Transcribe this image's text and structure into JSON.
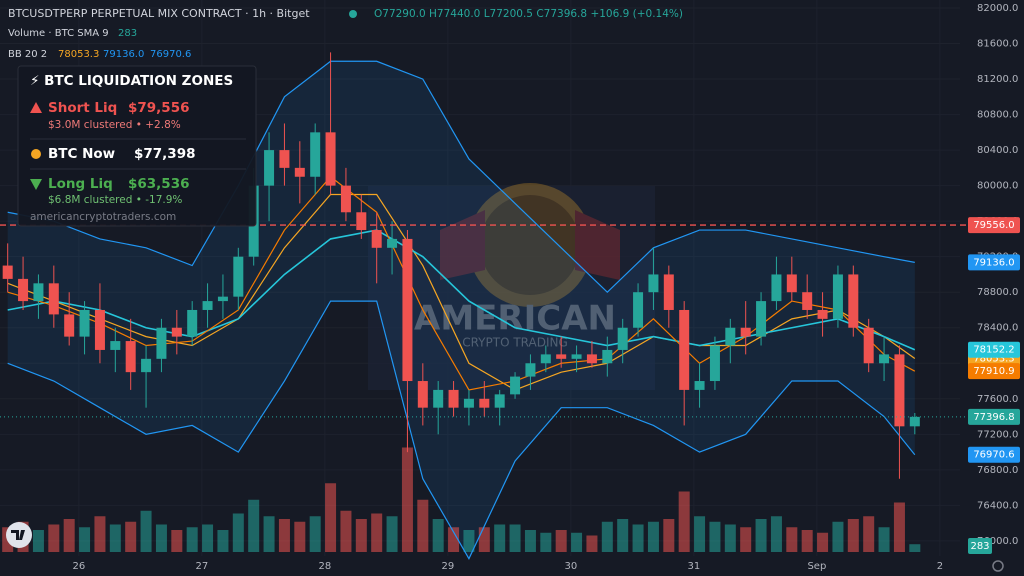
{
  "chart_data": {
    "type": "candlestick",
    "title": "BTCUSDTPERP PERPETUAL MIX CONTRACT · 1h · Bitget",
    "header_ohlc": [
      "O77290.0",
      "H77440.0",
      "L77200.5",
      "C77396.8",
      "+106.9 (+0.14%)"
    ],
    "volume_legend": "Volume · BTC SMA 9",
    "bb_legend": "BB 20 2",
    "categories": [
      null,
      null,
      null,
      null,
      null,
      "26",
      null,
      null,
      null,
      null,
      null,
      null,
      null,
      "27",
      null,
      null,
      null,
      null,
      null,
      null,
      null,
      "28",
      null,
      null,
      null,
      null,
      null,
      null,
      null,
      "29",
      null,
      null,
      null,
      null,
      null,
      null,
      null,
      "30",
      null,
      null,
      null,
      null,
      null,
      null,
      null,
      "31",
      null,
      null,
      null,
      null,
      null,
      null,
      null,
      "Sep",
      null,
      null,
      null,
      null,
      null,
      null,
      null,
      "2"
    ],
    "candles": {
      "up_color": "#26a69a",
      "down_color": "#ef5350",
      "open": [
        79100,
        78950,
        78700,
        78900,
        78550,
        78300,
        78600,
        78150,
        78250,
        77900,
        78050,
        78400,
        78300,
        78600,
        78700,
        78750,
        79200,
        80000,
        80400,
        80200,
        80100,
        80600,
        80000,
        79700,
        79500,
        79300,
        79400,
        77800,
        77500,
        77700,
        77500,
        77600,
        77500,
        77650,
        77850,
        78000,
        78100,
        78050,
        78100,
        78000,
        78150,
        78400,
        78800,
        79000,
        78600,
        77700,
        77800,
        78200,
        78400,
        78300,
        78700,
        79000,
        78800,
        78600,
        78500,
        79000,
        78400,
        78000,
        78100,
        77290,
        null,
        null
      ],
      "high": [
        79350,
        79200,
        79000,
        79100,
        78800,
        78700,
        78900,
        78400,
        78500,
        78200,
        78500,
        78600,
        78700,
        78900,
        79000,
        79300,
        80200,
        80600,
        80700,
        80500,
        80700,
        81500,
        80200,
        79900,
        79700,
        79600,
        79500,
        78000,
        77800,
        77800,
        77700,
        77800,
        77700,
        77900,
        78100,
        78200,
        78300,
        78200,
        78250,
        78300,
        78500,
        78900,
        79300,
        79100,
        78700,
        78000,
        78300,
        78500,
        78700,
        78800,
        79200,
        79200,
        79000,
        78800,
        79100,
        79100,
        78500,
        78300,
        78200,
        77440,
        null,
        null
      ],
      "low": [
        78800,
        78600,
        78500,
        78400,
        78200,
        78100,
        78000,
        77900,
        77700,
        77500,
        77900,
        78100,
        78200,
        78400,
        78500,
        78600,
        79100,
        79600,
        80000,
        79800,
        79900,
        79900,
        79600,
        79400,
        78900,
        79000,
        77000,
        77300,
        77200,
        77400,
        77300,
        77400,
        77300,
        77600,
        77700,
        77900,
        77950,
        77900,
        77950,
        77850,
        78000,
        78300,
        78600,
        78400,
        77300,
        77500,
        77700,
        78000,
        78100,
        78200,
        78600,
        78700,
        78500,
        78300,
        78400,
        78300,
        77900,
        77800,
        76700,
        77200.5,
        null,
        null
      ],
      "close": [
        78950,
        78700,
        78900,
        78550,
        78300,
        78600,
        78150,
        78250,
        77900,
        78050,
        78400,
        78300,
        78600,
        78700,
        78750,
        79200,
        80000,
        80400,
        80200,
        80100,
        80600,
        80000,
        79700,
        79500,
        79300,
        79400,
        77800,
        77500,
        77700,
        77500,
        77600,
        77500,
        77650,
        77850,
        78000,
        78100,
        78050,
        78100,
        78000,
        78150,
        78400,
        78800,
        79000,
        78600,
        77700,
        77800,
        78200,
        78400,
        78300,
        78700,
        79000,
        78800,
        78600,
        78500,
        79000,
        78400,
        78000,
        78100,
        77290,
        77396.8,
        null,
        null
      ]
    },
    "volume": {
      "name": "Volume",
      "lim": [
        0,
        4000
      ],
      "values": [
        900,
        1100,
        800,
        1000,
        1200,
        900,
        1300,
        1000,
        1100,
        1500,
        1000,
        800,
        900,
        1000,
        800,
        1400,
        1900,
        1300,
        1200,
        1100,
        1300,
        2500,
        1500,
        1200,
        1400,
        1300,
        3800,
        1900,
        1200,
        900,
        800,
        900,
        1000,
        1000,
        800,
        700,
        800,
        700,
        600,
        1100,
        1200,
        1000,
        1100,
        1200,
        2200,
        1300,
        1100,
        1000,
        900,
        1200,
        1300,
        900,
        800,
        700,
        1100,
        1200,
        1300,
        900,
        1800,
        283,
        null,
        null
      ]
    },
    "lines": [
      {
        "name": "BB upper",
        "color": "#2196f3",
        "tag": "79136.0",
        "x": [
          0,
          3,
          6,
          9,
          12,
          15,
          18,
          21,
          24,
          27,
          30,
          33,
          36,
          39,
          42,
          45,
          48,
          51,
          54,
          57,
          59
        ],
        "values": [
          79700,
          79600,
          79400,
          79300,
          79100,
          80000,
          81000,
          81400,
          81400,
          81200,
          80300,
          79800,
          79300,
          78800,
          79300,
          79500,
          79500,
          79400,
          79300,
          79200,
          79136
        ]
      },
      {
        "name": "BB basis",
        "color": "#f5a623",
        "tag": "78053.3",
        "x": [
          0,
          3,
          6,
          9,
          12,
          15,
          18,
          21,
          24,
          27,
          30,
          33,
          36,
          39,
          42,
          45,
          48,
          51,
          54,
          57,
          59
        ],
        "values": [
          78900,
          78700,
          78500,
          78300,
          78200,
          78500,
          79300,
          79900,
          79900,
          79100,
          78000,
          77700,
          77900,
          78000,
          78300,
          78200,
          78200,
          78500,
          78600,
          78300,
          78053.3
        ]
      },
      {
        "name": "BB lower",
        "color": "#2196f3",
        "tag": "76970.6",
        "x": [
          0,
          3,
          6,
          9,
          12,
          15,
          18,
          21,
          24,
          27,
          30,
          33,
          36,
          39,
          42,
          45,
          48,
          51,
          54,
          57,
          59
        ],
        "values": [
          78000,
          77800,
          77500,
          77200,
          77300,
          77000,
          77800,
          78700,
          78700,
          76700,
          75800,
          76900,
          77500,
          77500,
          77300,
          77000,
          77200,
          77800,
          77800,
          77400,
          76970.6
        ]
      },
      {
        "name": "EMA fast",
        "color": "#26c6da",
        "tag": "78152.2",
        "x": [
          0,
          3,
          6,
          9,
          12,
          15,
          18,
          21,
          24,
          27,
          30,
          33,
          36,
          39,
          42,
          45,
          48,
          51,
          54,
          57,
          59
        ],
        "values": [
          78600,
          78700,
          78600,
          78400,
          78300,
          78500,
          79000,
          79400,
          79500,
          79200,
          78700,
          78400,
          78300,
          78200,
          78300,
          78200,
          78300,
          78400,
          78500,
          78300,
          78152.2
        ]
      },
      {
        "name": "EMA slow",
        "color": "#f57c00",
        "tag": "77910.9",
        "x": [
          0,
          3,
          6,
          9,
          12,
          15,
          18,
          21,
          24,
          27,
          30,
          33,
          36,
          39,
          42,
          45,
          48,
          51,
          54,
          57,
          59
        ],
        "values": [
          78800,
          78650,
          78450,
          78200,
          78250,
          78600,
          79500,
          80100,
          79700,
          78600,
          77700,
          77800,
          78000,
          78050,
          78500,
          78000,
          78300,
          78700,
          78600,
          78100,
          77910.9
        ]
      }
    ],
    "hlines": [
      {
        "value": 79556,
        "label": "79556.0",
        "color": "#ef5350"
      },
      {
        "value": 77396.8,
        "label": "77396.8",
        "color": "#26a69a"
      }
    ],
    "ylim": [
      75830,
      82090
    ],
    "yticks": [
      {
        "value": 82000,
        "label": "82000.0"
      },
      {
        "value": 81600,
        "label": "81600.0"
      },
      {
        "value": 81200,
        "label": "81200.0"
      },
      {
        "value": 80800,
        "label": "80800.0"
      },
      {
        "value": 80400,
        "label": "80400.0"
      },
      {
        "value": 80000,
        "label": "80000.0"
      },
      {
        "value": 79600,
        "label": "79600.0"
      },
      {
        "value": 79200,
        "label": "79200.0"
      },
      {
        "value": 78800,
        "label": "78800.0"
      },
      {
        "value": 78400,
        "label": "78400.0"
      },
      {
        "value": 78000,
        "label": "78000.0"
      },
      {
        "value": 77600,
        "label": "77600.0"
      },
      {
        "value": 77200,
        "label": "77200.0"
      },
      {
        "value": 76800,
        "label": "76800.0"
      },
      {
        "value": 76400,
        "label": "76400.0"
      },
      {
        "value": 76000,
        "label": "76000.0"
      }
    ],
    "grid": true,
    "watermark": "AMERICAN",
    "watermark_sub": "CRYPTO TRADING",
    "overlay": {
      "title": "⚡ BTC LIQUIDATION ZONES",
      "short_label": "Short Liq",
      "short_value": "$79,556",
      "short_sub": "$3.0M clustered  •  +2.8%",
      "now_label": "BTC Now",
      "now_value": "$77,398",
      "long_label": "Long Liq",
      "long_value": "$63,536",
      "long_sub": "$6.8M clustered  •  -17.9%",
      "footer": "americancryptotraders.com"
    }
  }
}
